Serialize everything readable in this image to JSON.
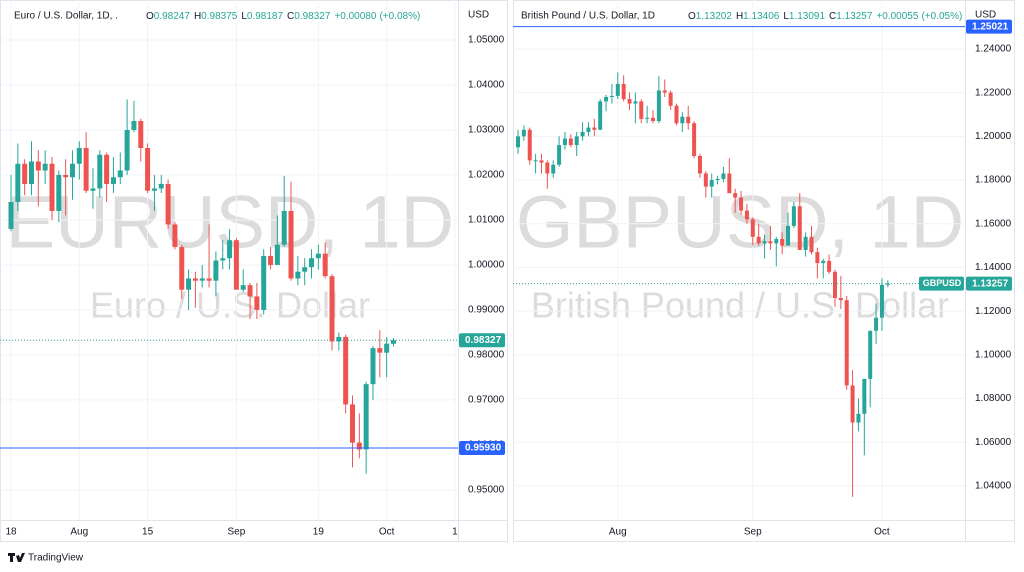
{
  "chart_data": [
    {
      "type": "candlestick",
      "symbol_title": "Euro / U.S. Dollar, 1D, .",
      "watermark": "EURUSD, 1D",
      "watermark_subtitle": "Euro / U.S. Dollar",
      "legend_labels": [
        "O",
        "H",
        "L",
        "C"
      ],
      "change": "+0.00080",
      "change_pct": "(+0.08%)",
      "currency": "USD",
      "colors": {
        "up": "#26a69a",
        "down": "#ef5350",
        "price_line": "#2962ff"
      },
      "grid": true,
      "ylim": [
        0.9433,
        1.0589
      ],
      "yticks": [
        {
          "value": 0.95,
          "label": "0.95000"
        },
        {
          "value": 0.96,
          "label": "0.96000"
        },
        {
          "value": 0.97,
          "label": "0.97000"
        },
        {
          "value": 0.98,
          "label": "0.98000"
        },
        {
          "value": 0.99,
          "label": "0.99000"
        },
        {
          "value": 1.0,
          "label": "1.00000"
        },
        {
          "value": 1.01,
          "label": "1.01000"
        },
        {
          "value": 1.02,
          "label": "1.02000"
        },
        {
          "value": 1.03,
          "label": "1.03000"
        },
        {
          "value": 1.04,
          "label": "1.04000"
        },
        {
          "value": 1.05,
          "label": "1.05000"
        }
      ],
      "price_line": {
        "value": 0.9593,
        "label": "0.95930"
      },
      "categories": [
        "18",
        null,
        null,
        null,
        null,
        null,
        null,
        null,
        null,
        null,
        "Aug",
        null,
        null,
        null,
        null,
        null,
        null,
        null,
        null,
        null,
        "15",
        null,
        null,
        null,
        null,
        null,
        null,
        null,
        null,
        null,
        null,
        null,
        null,
        "Sep",
        null,
        null,
        null,
        null,
        null,
        null,
        null,
        null,
        null,
        null,
        null,
        "19",
        null,
        null,
        null,
        null,
        null,
        null,
        null,
        null,
        null,
        "Oct",
        null,
        null,
        null,
        null,
        null,
        null,
        null,
        null,
        null,
        "1"
      ],
      "candles": [
        [
          1.008,
          1.02,
          1.0075,
          1.014
        ],
        [
          1.014,
          1.027,
          1.012,
          1.0225
        ],
        [
          1.0225,
          1.0235,
          1.0155,
          1.018
        ],
        [
          1.018,
          1.0275,
          1.0155,
          1.023
        ],
        [
          1.023,
          1.0255,
          1.013,
          1.021
        ],
        [
          1.021,
          1.0255,
          1.018,
          1.0225
        ],
        [
          1.0225,
          1.024,
          1.01,
          1.012
        ],
        [
          1.012,
          1.021,
          1.0095,
          1.02
        ],
        [
          1.02,
          1.0235,
          1.011,
          1.0195
        ],
        [
          1.0195,
          1.0255,
          1.0145,
          1.0225
        ],
        [
          1.0225,
          1.0275,
          1.019,
          1.026
        ],
        [
          1.026,
          1.0295,
          1.016,
          1.0165
        ],
        [
          1.0165,
          1.0215,
          1.0125,
          1.017
        ],
        [
          1.017,
          1.0255,
          1.015,
          1.0245
        ],
        [
          1.0245,
          1.025,
          1.014,
          1.018
        ],
        [
          1.018,
          1.024,
          1.016,
          1.0195
        ],
        [
          1.0195,
          1.025,
          1.018,
          1.021
        ],
        [
          1.021,
          1.0368,
          1.02,
          1.03
        ],
        [
          1.03,
          1.0365,
          1.0295,
          1.032
        ],
        [
          1.032,
          1.0325,
          1.023,
          1.026
        ],
        [
          1.026,
          1.027,
          1.016,
          1.0165
        ],
        [
          1.0165,
          1.02,
          1.012,
          1.017
        ],
        [
          1.017,
          1.02,
          1.016,
          1.018
        ],
        [
          1.018,
          1.019,
          1.008,
          1.009
        ],
        [
          1.009,
          1.0095,
          1.0035,
          1.004
        ],
        [
          1.004,
          1.0045,
          0.9925,
          0.9945
        ],
        [
          0.9945,
          0.999,
          0.99,
          0.997
        ],
        [
          0.997,
          0.9985,
          0.9905,
          0.9965
        ],
        [
          0.9965,
          1.0,
          0.995,
          0.997
        ],
        [
          0.997,
          1.009,
          0.995,
          0.9965
        ],
        [
          0.9965,
          1.003,
          0.993,
          1.001
        ],
        [
          1.001,
          1.0055,
          0.999,
          1.0015
        ],
        [
          1.0015,
          1.008,
          0.999,
          1.0055
        ],
        [
          1.0055,
          1.006,
          0.9945,
          0.9945
        ],
        [
          0.9945,
          0.999,
          0.994,
          0.9955
        ],
        [
          0.9955,
          0.996,
          0.988,
          0.993
        ],
        [
          0.993,
          0.996,
          0.988,
          0.99
        ],
        [
          0.99,
          1.0035,
          0.989,
          1.002
        ],
        [
          1.002,
          1.004,
          0.999,
          1.0
        ],
        [
          1.0,
          1.011,
          1.0,
          1.0045
        ],
        [
          1.0045,
          1.0198,
          1.004,
          1.012
        ],
        [
          1.012,
          1.0185,
          0.9965,
          0.997
        ],
        [
          0.997,
          1.002,
          0.9955,
          0.9985
        ],
        [
          0.9985,
          1.0015,
          0.9955,
          0.9995
        ],
        [
          0.9995,
          1.0035,
          0.997,
          1.0015
        ],
        [
          1.0015,
          1.0045,
          0.999,
          1.0025
        ],
        [
          1.0025,
          1.005,
          0.997,
          0.9975
        ],
        [
          0.9975,
          0.998,
          0.981,
          0.983
        ],
        [
          0.983,
          0.985,
          0.981,
          0.984
        ],
        [
          0.984,
          0.9845,
          0.967,
          0.969
        ],
        [
          0.969,
          0.971,
          0.955,
          0.9605
        ],
        [
          0.9605,
          0.967,
          0.957,
          0.959
        ],
        [
          0.959,
          0.974,
          0.9536,
          0.9735
        ],
        [
          0.9735,
          0.982,
          0.97,
          0.9815
        ],
        [
          0.9815,
          0.9855,
          0.975,
          0.9805
        ],
        [
          0.9805,
          0.984,
          0.975,
          0.9825
        ],
        [
          0.98247,
          0.98375,
          0.98187,
          0.98327
        ],
        null,
        null,
        null,
        null,
        null,
        null,
        null,
        null,
        null
      ]
    },
    {
      "type": "candlestick",
      "symbol_title": "British Pound / U.S. Dollar, 1D",
      "watermark": "GBPUSD, 1D",
      "watermark_subtitle": "British Pound / U.S. Dollar",
      "legend_labels": [
        "O",
        "H",
        "L",
        "C"
      ],
      "change": "+0.00055",
      "change_pct": "(+0.05%)",
      "currency": "USD",
      "price_label_name": "GBPUSD",
      "colors": {
        "up": "#26a69a",
        "down": "#ef5350",
        "price_line": "#2962ff"
      },
      "grid": true,
      "ylim": [
        1.0244,
        1.2624
      ],
      "yticks": [
        {
          "value": 1.04,
          "label": "1.04000"
        },
        {
          "value": 1.06,
          "label": "1.06000"
        },
        {
          "value": 1.08,
          "label": "1.08000"
        },
        {
          "value": 1.1,
          "label": "1.10000"
        },
        {
          "value": 1.12,
          "label": "1.12000"
        },
        {
          "value": 1.14,
          "label": "1.14000"
        },
        {
          "value": 1.16,
          "label": "1.16000"
        },
        {
          "value": 1.18,
          "label": "1.18000"
        },
        {
          "value": 1.2,
          "label": "1.20000"
        },
        {
          "value": 1.22,
          "label": "1.22000"
        },
        {
          "value": 1.24,
          "label": "1.24000"
        }
      ],
      "price_line": 1.25021,
      "categories": [
        null,
        null,
        null,
        null,
        null,
        null,
        null,
        null,
        null,
        null,
        null,
        null,
        null,
        null,
        null,
        null,
        null,
        "Aug",
        null,
        null,
        null,
        null,
        null,
        null,
        null,
        null,
        null,
        null,
        null,
        null,
        null,
        null,
        null,
        null,
        null,
        null,
        null,
        null,
        null,
        null,
        "Sep",
        null,
        null,
        null,
        null,
        null,
        null,
        null,
        null,
        null,
        null,
        null,
        null,
        null,
        null,
        null,
        null,
        null,
        null,
        null,
        null,
        null,
        "Oct",
        null,
        null,
        null,
        null,
        null,
        null,
        null,
        null,
        null,
        null,
        null,
        null,
        null,
        null,
        null
      ],
      "candles": [
        [
          1.195,
          1.203,
          1.192,
          1.2
        ],
        [
          1.2,
          1.205,
          1.198,
          1.203
        ],
        [
          1.203,
          1.204,
          1.187,
          1.189
        ],
        [
          1.189,
          1.192,
          1.183,
          1.189
        ],
        [
          1.189,
          1.192,
          1.183,
          1.188
        ],
        [
          1.188,
          1.189,
          1.176,
          1.183
        ],
        [
          1.183,
          1.189,
          1.181,
          1.187
        ],
        [
          1.187,
          1.2,
          1.186,
          1.196
        ],
        [
          1.196,
          1.202,
          1.194,
          1.199
        ],
        [
          1.199,
          1.201,
          1.195,
          1.196
        ],
        [
          1.196,
          1.202,
          1.191,
          1.2
        ],
        [
          1.2,
          1.2065,
          1.198,
          1.202
        ],
        [
          1.202,
          1.2065,
          1.2,
          1.204
        ],
        [
          1.204,
          1.208,
          1.2,
          1.203
        ],
        [
          1.203,
          1.217,
          1.203,
          1.216
        ],
        [
          1.216,
          1.219,
          1.2115,
          1.218
        ],
        [
          1.218,
          1.224,
          1.215,
          1.2185
        ],
        [
          1.2185,
          1.2293,
          1.217,
          1.224
        ],
        [
          1.224,
          1.228,
          1.216,
          1.217
        ],
        [
          1.217,
          1.22,
          1.212,
          1.215
        ],
        [
          1.215,
          1.22,
          1.206,
          1.216
        ],
        [
          1.216,
          1.217,
          1.206,
          1.208
        ],
        [
          1.208,
          1.214,
          1.206,
          1.2085
        ],
        [
          1.2085,
          1.212,
          1.206,
          1.207
        ],
        [
          1.207,
          1.2275,
          1.206,
          1.221
        ],
        [
          1.221,
          1.226,
          1.218,
          1.22
        ],
        [
          1.22,
          1.221,
          1.212,
          1.214
        ],
        [
          1.214,
          1.215,
          1.205,
          1.206
        ],
        [
          1.206,
          1.211,
          1.202,
          1.209
        ],
        [
          1.209,
          1.214,
          1.203,
          1.206
        ],
        [
          1.206,
          1.207,
          1.19,
          1.191
        ],
        [
          1.191,
          1.192,
          1.181,
          1.183
        ],
        [
          1.183,
          1.184,
          1.172,
          1.177
        ],
        [
          1.177,
          1.183,
          1.172,
          1.18
        ],
        [
          1.18,
          1.182,
          1.178,
          1.1805
        ],
        [
          1.1805,
          1.186,
          1.179,
          1.183
        ],
        [
          1.183,
          1.19,
          1.174,
          1.174
        ],
        [
          1.174,
          1.176,
          1.165,
          1.172
        ],
        [
          1.172,
          1.175,
          1.164,
          1.166
        ],
        [
          1.166,
          1.169,
          1.16,
          1.162
        ],
        [
          1.162,
          1.163,
          1.15,
          1.154
        ],
        [
          1.154,
          1.16,
          1.15,
          1.151
        ],
        [
          1.151,
          1.155,
          1.144,
          1.152
        ],
        [
          1.152,
          1.159,
          1.148,
          1.151
        ],
        [
          1.151,
          1.154,
          1.1405,
          1.153
        ],
        [
          1.153,
          1.156,
          1.146,
          1.15
        ],
        [
          1.15,
          1.165,
          1.15,
          1.159
        ],
        [
          1.159,
          1.17,
          1.158,
          1.168
        ],
        [
          1.168,
          1.174,
          1.148,
          1.148
        ],
        [
          1.148,
          1.156,
          1.145,
          1.154
        ],
        [
          1.154,
          1.159,
          1.146,
          1.147
        ],
        [
          1.147,
          1.149,
          1.135,
          1.142
        ],
        [
          1.142,
          1.144,
          1.135,
          1.143
        ],
        [
          1.143,
          1.146,
          1.137,
          1.138
        ],
        [
          1.138,
          1.139,
          1.122,
          1.126
        ],
        [
          1.126,
          1.136,
          1.121,
          1.125
        ],
        [
          1.125,
          1.127,
          1.084,
          1.086
        ],
        [
          1.086,
          1.093,
          1.035,
          1.069
        ],
        [
          1.069,
          1.08,
          1.065,
          1.073
        ],
        [
          1.073,
          1.083,
          1.054,
          1.089
        ],
        [
          1.089,
          1.111,
          1.076,
          1.111
        ],
        [
          1.111,
          1.1235,
          1.105,
          1.117
        ],
        [
          1.117,
          1.135,
          1.111,
          1.132
        ],
        [
          1.13202,
          1.13406,
          1.13091,
          1.13257
        ],
        null,
        null,
        null,
        null,
        null,
        null,
        null,
        null,
        null,
        null,
        null,
        null,
        null,
        null
      ]
    }
  ],
  "footer": {
    "brand": "TradingView"
  }
}
